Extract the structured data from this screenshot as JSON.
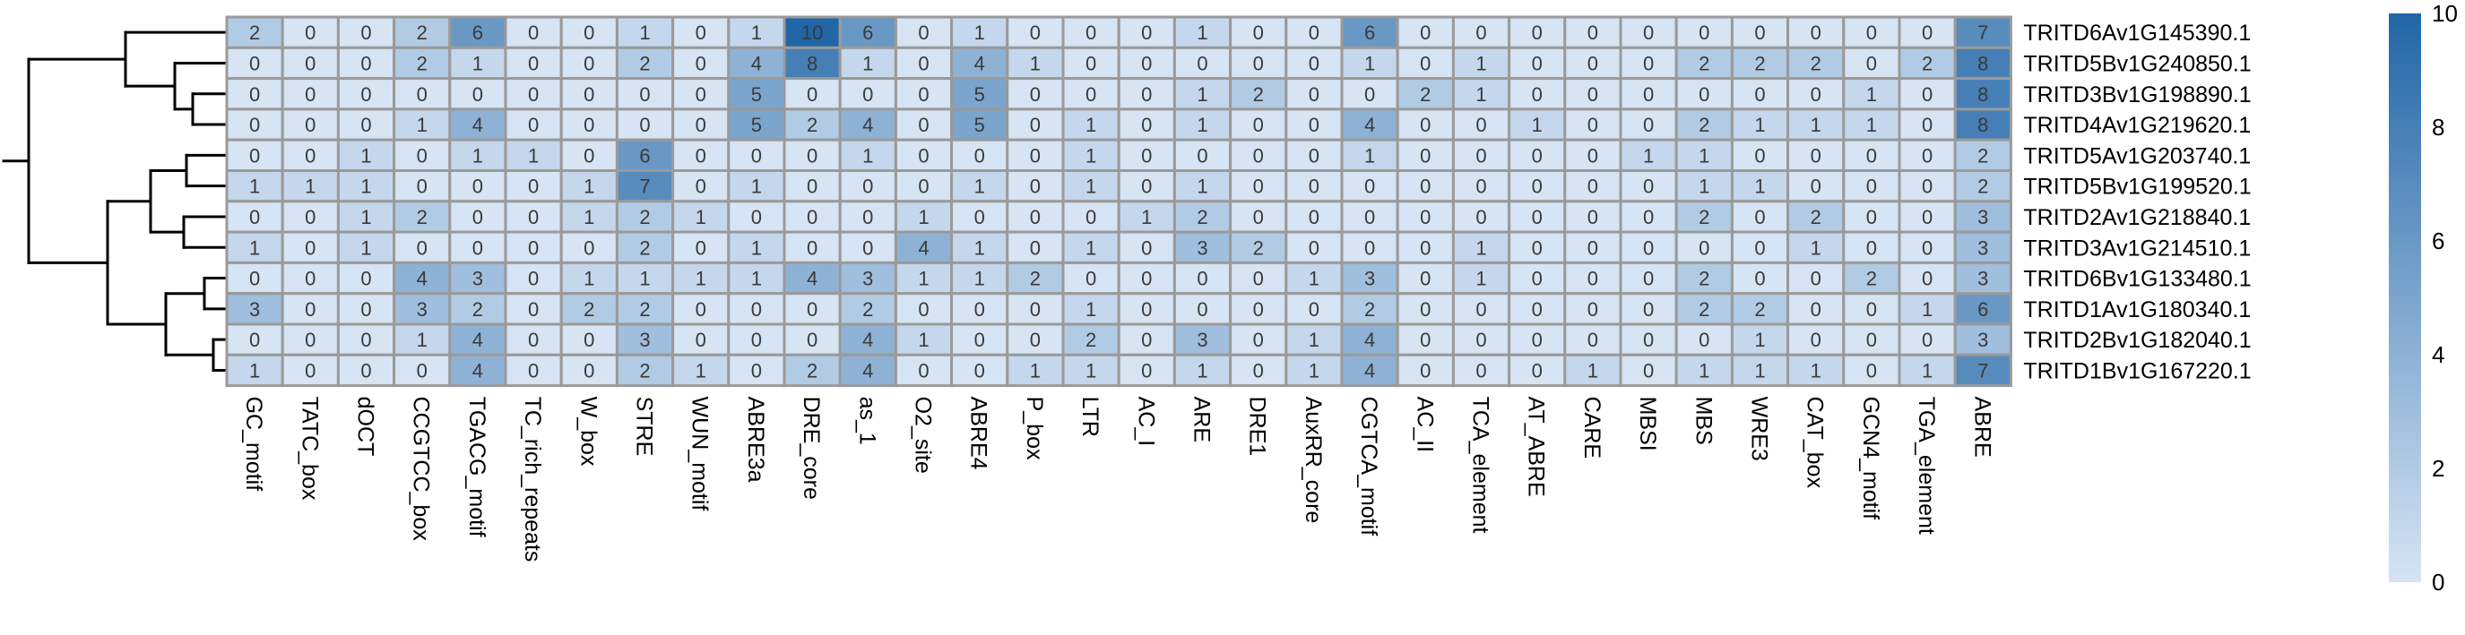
{
  "chart_data": {
    "type": "heatmap",
    "title": "",
    "rows": [
      "TRITD6Av1G145390.1",
      "TRITD5Bv1G240850.1",
      "TRITD3Bv1G198890.1",
      "TRITD4Av1G219620.1",
      "TRITD5Av1G203740.1",
      "TRITD5Bv1G199520.1",
      "TRITD2Av1G218840.1",
      "TRITD3Av1G214510.1",
      "TRITD6Bv1G133480.1",
      "TRITD1Av1G180340.1",
      "TRITD2Bv1G182040.1",
      "TRITD1Bv1G167220.1"
    ],
    "columns": [
      "GC_motif",
      "TATC_box",
      "dOCT",
      "CCGTCC_box",
      "TGACG_motif",
      "TC_rich_repeats",
      "W_box",
      "STRE",
      "WUN_motif",
      "ABRE3a",
      "DRE_core",
      "as_1",
      "O2_site",
      "ABRE4",
      "P_box",
      "LTR",
      "AC_I",
      "ARE",
      "DRE1",
      "AuxRR_core",
      "CGTCA_motif",
      "AC_II",
      "TCA_element",
      "AT_ABRE",
      "CARE",
      "MBSI",
      "MBS",
      "WRE3",
      "CAT_box",
      "GCN4_motif",
      "TGA_element",
      "ABRE"
    ],
    "values": [
      [
        2,
        0,
        0,
        2,
        6,
        0,
        0,
        1,
        0,
        1,
        10,
        6,
        0,
        1,
        0,
        0,
        0,
        1,
        0,
        0,
        6,
        0,
        0,
        0,
        0,
        0,
        0,
        0,
        0,
        0,
        0,
        7
      ],
      [
        0,
        0,
        0,
        2,
        1,
        0,
        0,
        2,
        0,
        4,
        8,
        1,
        0,
        4,
        1,
        0,
        0,
        0,
        0,
        0,
        1,
        0,
        1,
        0,
        0,
        0,
        2,
        2,
        2,
        0,
        2,
        8
      ],
      [
        0,
        0,
        0,
        0,
        0,
        0,
        0,
        0,
        0,
        5,
        0,
        0,
        0,
        5,
        0,
        0,
        0,
        1,
        2,
        0,
        0,
        2,
        1,
        0,
        0,
        0,
        0,
        0,
        0,
        1,
        0,
        8
      ],
      [
        0,
        0,
        0,
        1,
        4,
        0,
        0,
        0,
        0,
        5,
        2,
        4,
        0,
        5,
        0,
        1,
        0,
        1,
        0,
        0,
        4,
        0,
        0,
        1,
        0,
        0,
        2,
        1,
        1,
        1,
        0,
        8
      ],
      [
        0,
        0,
        1,
        0,
        1,
        1,
        0,
        6,
        0,
        0,
        0,
        1,
        0,
        0,
        0,
        1,
        0,
        0,
        0,
        0,
        1,
        0,
        0,
        0,
        0,
        1,
        1,
        0,
        0,
        0,
        0,
        2
      ],
      [
        1,
        1,
        1,
        0,
        0,
        0,
        1,
        7,
        0,
        1,
        0,
        0,
        0,
        1,
        0,
        1,
        0,
        1,
        0,
        0,
        0,
        0,
        0,
        0,
        0,
        0,
        1,
        1,
        0,
        0,
        0,
        2
      ],
      [
        0,
        0,
        1,
        2,
        0,
        0,
        1,
        2,
        1,
        0,
        0,
        0,
        1,
        0,
        0,
        0,
        1,
        2,
        0,
        0,
        0,
        0,
        0,
        0,
        0,
        0,
        2,
        0,
        2,
        0,
        0,
        3
      ],
      [
        1,
        0,
        1,
        0,
        0,
        0,
        0,
        2,
        0,
        1,
        0,
        0,
        4,
        1,
        0,
        1,
        0,
        3,
        2,
        0,
        0,
        0,
        1,
        0,
        0,
        0,
        0,
        0,
        1,
        0,
        0,
        3
      ],
      [
        0,
        0,
        0,
        4,
        3,
        0,
        1,
        1,
        1,
        1,
        4,
        3,
        1,
        1,
        2,
        0,
        0,
        0,
        0,
        1,
        3,
        0,
        1,
        0,
        0,
        0,
        2,
        0,
        0,
        2,
        0,
        3
      ],
      [
        3,
        0,
        0,
        3,
        2,
        0,
        2,
        2,
        0,
        0,
        0,
        2,
        0,
        0,
        0,
        1,
        0,
        0,
        0,
        0,
        2,
        0,
        0,
        0,
        0,
        0,
        2,
        2,
        0,
        0,
        1,
        6
      ],
      [
        0,
        0,
        0,
        1,
        4,
        0,
        0,
        3,
        0,
        0,
        0,
        4,
        1,
        0,
        0,
        2,
        0,
        3,
        0,
        1,
        4,
        0,
        0,
        0,
        0,
        0,
        0,
        1,
        0,
        0,
        0,
        3
      ],
      [
        1,
        0,
        0,
        0,
        4,
        0,
        0,
        2,
        1,
        0,
        2,
        4,
        0,
        0,
        1,
        1,
        0,
        1,
        0,
        1,
        4,
        0,
        0,
        0,
        1,
        0,
        1,
        1,
        1,
        0,
        1,
        7
      ]
    ],
    "colorbar": {
      "ticks": [
        0,
        2,
        4,
        6,
        8,
        10
      ],
      "range": [
        0,
        10
      ],
      "low_color": "#d6e4f4",
      "high_color": "#2166a6"
    },
    "cell_border_color": "#9a9a9a",
    "dendrogram": "row"
  }
}
